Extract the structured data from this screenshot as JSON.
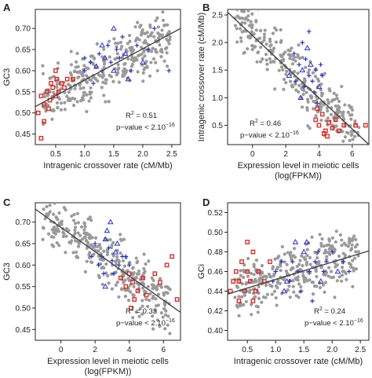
{
  "figure": {
    "background": "#ffffff",
    "axis_color": "#222222",
    "fit_color": "#444444"
  },
  "marker_colors": {
    "gray": "#9a9a9a",
    "red": "#e0201b",
    "blue": "#1f2fd6"
  },
  "chart_data": [
    {
      "panel": "A",
      "type": "scatter",
      "xlabel": "Intragenic crossover rate (cM/Mb)",
      "ylabel": "GC3",
      "xlim": [
        0.15,
        2.65
      ],
      "ylim": [
        0.425,
        0.745
      ],
      "xticks": [
        0.5,
        1.0,
        1.5,
        2.0,
        2.5
      ],
      "xtick_labels": [
        "0.5",
        "1.0",
        "1.5",
        "2.0",
        "2.5"
      ],
      "yticks": [
        0.45,
        0.5,
        0.55,
        0.6,
        0.65,
        0.7
      ],
      "ytick_labels": [
        "0.45",
        "0.50",
        "0.55",
        "0.60",
        "0.65",
        "0.70"
      ],
      "fit_line": [
        [
          0.15,
          0.515
        ],
        [
          2.65,
          0.7
        ]
      ],
      "annotation": {
        "r2": "0.51",
        "pvalue": "2.10",
        "pvalue_exp": "−16"
      },
      "red_points": [
        [
          0.2,
          0.5
        ],
        [
          0.25,
          0.54
        ],
        [
          0.3,
          0.52
        ],
        [
          0.35,
          0.55
        ],
        [
          0.4,
          0.53
        ],
        [
          0.42,
          0.57
        ],
        [
          0.45,
          0.56
        ],
        [
          0.5,
          0.54
        ],
        [
          0.52,
          0.58
        ],
        [
          0.55,
          0.55
        ],
        [
          0.6,
          0.57
        ],
        [
          0.65,
          0.56
        ],
        [
          0.7,
          0.58
        ],
        [
          0.3,
          0.48
        ],
        [
          0.25,
          0.44
        ],
        [
          0.5,
          0.6
        ],
        [
          0.8,
          0.58
        ],
        [
          0.38,
          0.51
        ]
      ],
      "blue_points": [
        [
          1.0,
          0.6
        ],
        [
          1.1,
          0.62
        ],
        [
          1.2,
          0.61
        ],
        [
          1.25,
          0.64
        ],
        [
          1.3,
          0.6
        ],
        [
          1.35,
          0.63
        ],
        [
          1.4,
          0.66
        ],
        [
          1.45,
          0.62
        ],
        [
          1.5,
          0.6
        ],
        [
          1.55,
          0.65
        ],
        [
          1.6,
          0.63
        ],
        [
          1.7,
          0.64
        ],
        [
          1.8,
          0.6
        ],
        [
          1.9,
          0.66
        ],
        [
          2.0,
          0.62
        ],
        [
          2.2,
          0.7
        ],
        [
          2.45,
          0.6
        ],
        [
          1.5,
          0.7
        ],
        [
          1.15,
          0.57
        ],
        [
          1.65,
          0.68
        ],
        [
          1.3,
          0.66
        ],
        [
          2.1,
          0.65
        ],
        [
          1.0,
          0.63
        ],
        [
          1.75,
          0.58
        ]
      ]
    },
    {
      "panel": "B",
      "type": "scatter",
      "xlabel": "Expression level in meiotic cells\n(log(FPKM))",
      "ylabel": "Intragenic crossover rate (cM/Mb)",
      "xlim": [
        -1.5,
        7.0
      ],
      "ylim": [
        0.15,
        2.6
      ],
      "xticks": [
        0,
        2,
        4,
        6
      ],
      "xtick_labels": [
        "0",
        "2",
        "4",
        "6"
      ],
      "yticks": [
        0.5,
        1.0,
        1.5,
        2.0,
        2.5
      ],
      "ytick_labels": [
        "0.5",
        "1.0",
        "1.5",
        "2.0",
        "2.5"
      ],
      "fit_line": [
        [
          -1.5,
          2.55
        ],
        [
          7.0,
          0.15
        ]
      ],
      "annotation": {
        "r2": "0.46",
        "pvalue": "2.10",
        "pvalue_exp": "−16"
      },
      "red_points": [
        [
          3.8,
          0.6
        ],
        [
          4.0,
          0.5
        ],
        [
          4.2,
          0.7
        ],
        [
          4.4,
          0.4
        ],
        [
          4.6,
          0.55
        ],
        [
          4.8,
          0.45
        ],
        [
          5.0,
          0.6
        ],
        [
          4.3,
          0.35
        ],
        [
          3.9,
          0.8
        ],
        [
          5.5,
          0.5
        ],
        [
          6.2,
          0.5
        ],
        [
          6.8,
          0.5
        ],
        [
          4.5,
          0.3
        ],
        [
          5.2,
          0.4
        ]
      ],
      "blue_points": [
        [
          2.5,
          1.8
        ],
        [
          2.8,
          1.6
        ],
        [
          3.0,
          1.5
        ],
        [
          3.2,
          1.7
        ],
        [
          3.4,
          1.4
        ],
        [
          3.5,
          1.6
        ],
        [
          3.6,
          1.3
        ],
        [
          3.8,
          1.5
        ],
        [
          4.0,
          1.2
        ],
        [
          2.6,
          1.3
        ],
        [
          3.0,
          2.0
        ],
        [
          3.3,
          1.9
        ],
        [
          4.2,
          1.4
        ],
        [
          3.7,
          1.1
        ],
        [
          2.9,
          1.0
        ],
        [
          3.1,
          1.2
        ],
        [
          4.1,
          1.6
        ],
        [
          2.2,
          1.4
        ],
        [
          3.9,
          0.9
        ],
        [
          3.4,
          2.2
        ]
      ]
    },
    {
      "panel": "C",
      "type": "scatter",
      "xlabel": "Expression level in meiotic cells\n(log(FPKM))",
      "ylabel": "GC3",
      "xlim": [
        -1.5,
        7.0
      ],
      "ylim": [
        0.425,
        0.745
      ],
      "xticks": [
        0,
        2,
        4,
        6
      ],
      "xtick_labels": [
        "0",
        "2",
        "4",
        "6"
      ],
      "yticks": [
        0.45,
        0.5,
        0.55,
        0.6,
        0.65,
        0.7
      ],
      "ytick_labels": [
        "0.45",
        "0.50",
        "0.55",
        "0.60",
        "0.65",
        "0.70"
      ],
      "fit_line": [
        [
          -1.5,
          0.73
        ],
        [
          7.0,
          0.49
        ]
      ],
      "annotation": {
        "r2": "0.33",
        "pvalue": "2.10",
        "pvalue_exp": "−16"
      },
      "red_points": [
        [
          3.5,
          0.57
        ],
        [
          3.8,
          0.55
        ],
        [
          4.0,
          0.58
        ],
        [
          4.2,
          0.56
        ],
        [
          4.5,
          0.54
        ],
        [
          4.8,
          0.57
        ],
        [
          5.0,
          0.53
        ],
        [
          4.3,
          0.52
        ],
        [
          6.2,
          0.6
        ],
        [
          6.5,
          0.62
        ],
        [
          5.8,
          0.56
        ],
        [
          6.8,
          0.52
        ],
        [
          5.5,
          0.58
        ],
        [
          4.1,
          0.5
        ]
      ],
      "blue_points": [
        [
          2.0,
          0.65
        ],
        [
          2.4,
          0.62
        ],
        [
          2.6,
          0.66
        ],
        [
          2.8,
          0.64
        ],
        [
          3.0,
          0.61
        ],
        [
          3.2,
          0.63
        ],
        [
          3.4,
          0.6
        ],
        [
          3.6,
          0.62
        ],
        [
          2.7,
          0.68
        ],
        [
          2.2,
          0.6
        ],
        [
          3.1,
          0.58
        ],
        [
          2.9,
          0.7
        ],
        [
          3.8,
          0.62
        ],
        [
          2.5,
          0.58
        ],
        [
          3.3,
          0.65
        ],
        [
          4.0,
          0.6
        ],
        [
          1.8,
          0.62
        ],
        [
          2.6,
          0.55
        ]
      ]
    },
    {
      "panel": "D",
      "type": "scatter",
      "xlabel": "Intragenic crossover rate (cM/Mb)",
      "ylabel": "GCi",
      "xlim": [
        0.15,
        2.65
      ],
      "ylim": [
        0.39,
        0.53
      ],
      "xticks": [
        0.5,
        1.0,
        1.5,
        2.0,
        2.5
      ],
      "xtick_labels": [
        "0.5",
        "1.0",
        "1.5",
        "2.0",
        "2.5"
      ],
      "yticks": [
        0.4,
        0.42,
        0.44,
        0.46,
        0.48,
        0.5,
        0.52
      ],
      "ytick_labels": [
        "0.40",
        "0.42",
        "0.44",
        "0.46",
        "0.48",
        "0.50",
        "0.52"
      ],
      "fit_line": [
        [
          0.15,
          0.437
        ],
        [
          2.65,
          0.481
        ]
      ],
      "annotation": {
        "r2": "0.24",
        "pvalue": "2.10",
        "pvalue_exp": "−16"
      },
      "red_points": [
        [
          0.2,
          0.44
        ],
        [
          0.3,
          0.46
        ],
        [
          0.35,
          0.45
        ],
        [
          0.4,
          0.47
        ],
        [
          0.45,
          0.44
        ],
        [
          0.5,
          0.46
        ],
        [
          0.55,
          0.45
        ],
        [
          0.6,
          0.48
        ],
        [
          0.65,
          0.44
        ],
        [
          0.7,
          0.46
        ],
        [
          0.8,
          0.45
        ],
        [
          0.35,
          0.43
        ],
        [
          0.5,
          0.49
        ],
        [
          0.9,
          0.47
        ],
        [
          0.25,
          0.45
        ],
        [
          0.6,
          0.43
        ]
      ],
      "blue_points": [
        [
          1.0,
          0.46
        ],
        [
          1.1,
          0.47
        ],
        [
          1.2,
          0.45
        ],
        [
          1.3,
          0.47
        ],
        [
          1.4,
          0.46
        ],
        [
          1.5,
          0.48
        ],
        [
          1.6,
          0.46
        ],
        [
          1.7,
          0.47
        ],
        [
          1.8,
          0.45
        ],
        [
          1.9,
          0.47
        ],
        [
          2.0,
          0.48
        ],
        [
          2.1,
          0.46
        ],
        [
          2.3,
          0.46
        ],
        [
          1.45,
          0.44
        ],
        [
          1.55,
          0.49
        ],
        [
          1.25,
          0.45
        ],
        [
          1.75,
          0.48
        ],
        [
          1.15,
          0.44
        ],
        [
          2.2,
          0.47
        ],
        [
          1.65,
          0.43
        ],
        [
          1.35,
          0.49
        ],
        [
          0.95,
          0.45
        ],
        [
          1.85,
          0.46
        ]
      ]
    }
  ]
}
